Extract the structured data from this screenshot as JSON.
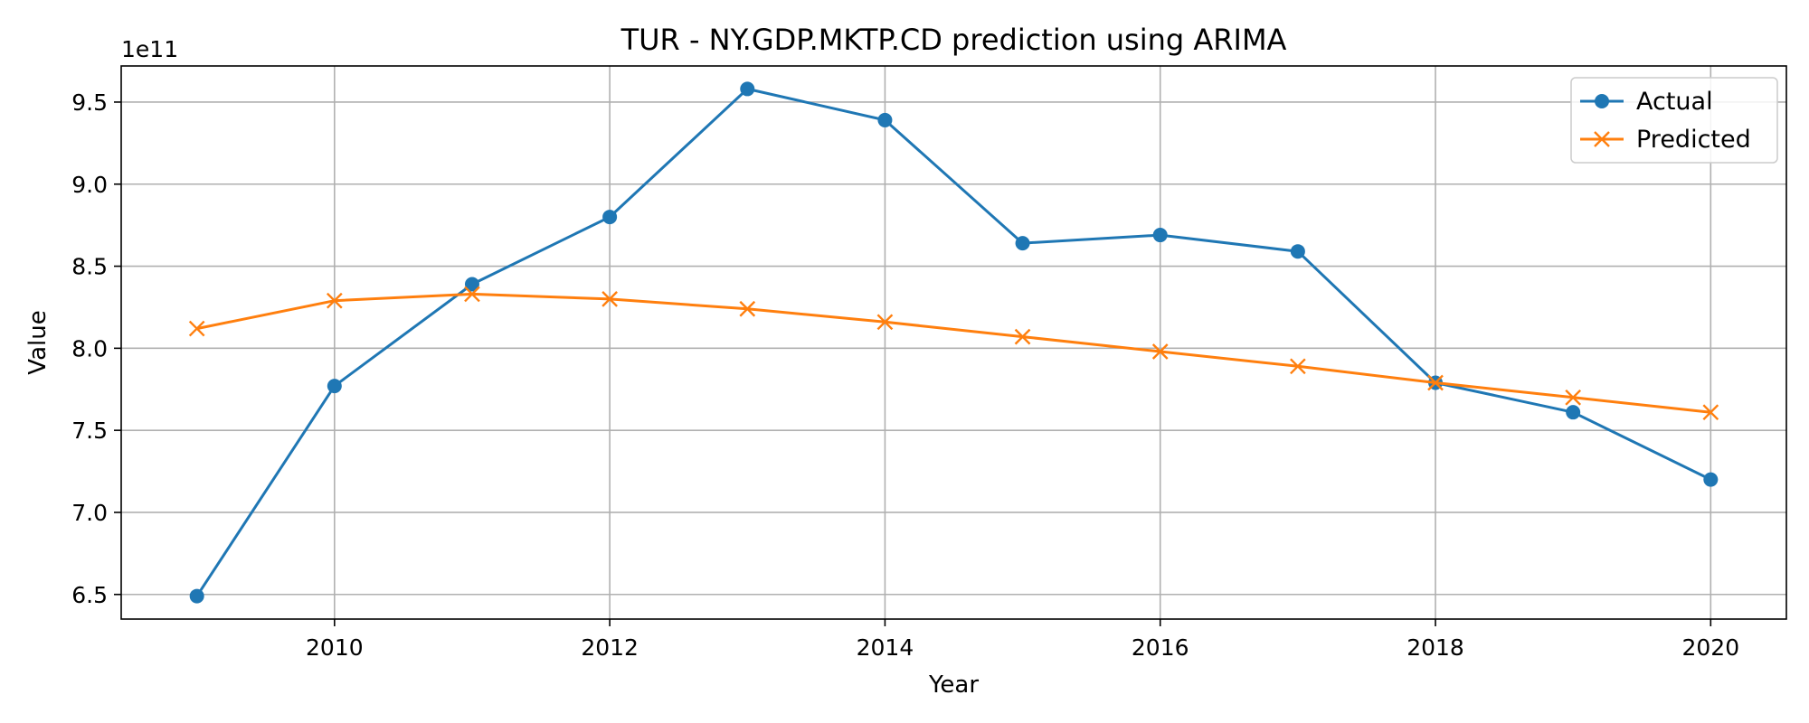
{
  "chart_data": {
    "type": "line",
    "title": "TUR - NY.GDP.MKTP.CD prediction using ARIMA",
    "xlabel": "Year",
    "ylabel": "Value",
    "y_offset_label": "1e11",
    "x_ticks": [
      2010,
      2012,
      2014,
      2016,
      2018,
      2020
    ],
    "y_ticks": [
      "6.5",
      "7.0",
      "7.5",
      "8.0",
      "8.5",
      "9.0",
      "9.5"
    ],
    "y_tick_values": [
      6.5,
      7.0,
      7.5,
      8.0,
      8.5,
      9.0,
      9.5
    ],
    "xlim": [
      2008.45,
      2020.55
    ],
    "ylim": [
      6.35,
      9.72
    ],
    "y_scale_note": "values in units of 1e11",
    "grid": true,
    "legend_position": "top-right",
    "x": [
      2009,
      2010,
      2011,
      2012,
      2013,
      2014,
      2015,
      2016,
      2017,
      2018,
      2019,
      2020
    ],
    "series": [
      {
        "name": "Actual",
        "color": "#1f77b4",
        "marker": "circle",
        "values": [
          6.49,
          7.77,
          8.39,
          8.8,
          9.58,
          9.39,
          8.64,
          8.69,
          8.59,
          7.79,
          7.61,
          7.2
        ]
      },
      {
        "name": "Predicted",
        "color": "#ff7f0e",
        "marker": "x",
        "values": [
          8.12,
          8.29,
          8.33,
          8.3,
          8.24,
          8.16,
          8.07,
          7.98,
          7.89,
          7.79,
          7.7,
          7.61
        ]
      }
    ]
  }
}
